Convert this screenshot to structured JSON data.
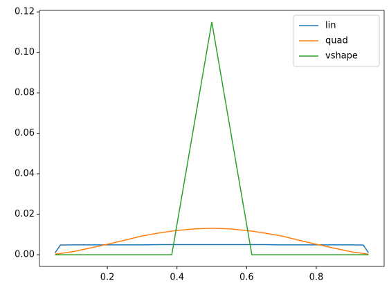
{
  "chart_data": {
    "type": "line",
    "x": [
      0.05,
      0.065,
      0.1,
      0.15,
      0.2,
      0.25,
      0.3,
      0.35,
      0.385,
      0.4,
      0.45,
      0.5,
      0.55,
      0.6,
      0.615,
      0.65,
      0.7,
      0.75,
      0.8,
      0.85,
      0.9,
      0.935,
      0.95
    ],
    "series": [
      {
        "name": "lin",
        "color": "#1f77b4",
        "values": [
          0.001,
          0.0048,
          0.0049,
          0.0049,
          0.0049,
          0.0049,
          0.0049,
          0.005,
          0.005,
          0.005,
          0.005,
          0.005,
          0.005,
          0.005,
          0.005,
          0.005,
          0.0049,
          0.0049,
          0.0049,
          0.0049,
          0.0049,
          0.0048,
          0.001
        ]
      },
      {
        "name": "quad",
        "color": "#ff7f0e",
        "values": [
          0.0003,
          0.0006,
          0.0015,
          0.0033,
          0.0052,
          0.0072,
          0.0093,
          0.0108,
          0.0117,
          0.012,
          0.0128,
          0.0131,
          0.0128,
          0.012,
          0.0117,
          0.0108,
          0.0093,
          0.0072,
          0.0052,
          0.0033,
          0.0015,
          0.0006,
          0.0003
        ]
      },
      {
        "name": "vshape",
        "color": "#2ca02c",
        "values": [
          0,
          0,
          0,
          0,
          0,
          0,
          0,
          0,
          0,
          0.015,
          0.065,
          0.115,
          0.065,
          0.015,
          0,
          0,
          0,
          0,
          0,
          0,
          0,
          0,
          0
        ]
      }
    ],
    "xlim": [
      0.005,
      0.995
    ],
    "ylim": [
      -0.00575,
      0.12075
    ],
    "xticks": [
      0.2,
      0.4,
      0.6,
      0.8
    ],
    "yticks": [
      {
        "value": 0,
        "label": "0.00"
      },
      {
        "value": 0.02,
        "label": "0.02"
      },
      {
        "value": 0.04,
        "label": "0.04"
      },
      {
        "value": 0.06,
        "label": "0.06"
      },
      {
        "value": 0.08,
        "label": "0.08"
      },
      {
        "value": 0.1,
        "label": "0.10"
      },
      {
        "value": 0.12,
        "label": "0.12"
      }
    ],
    "legend": "upper right"
  }
}
